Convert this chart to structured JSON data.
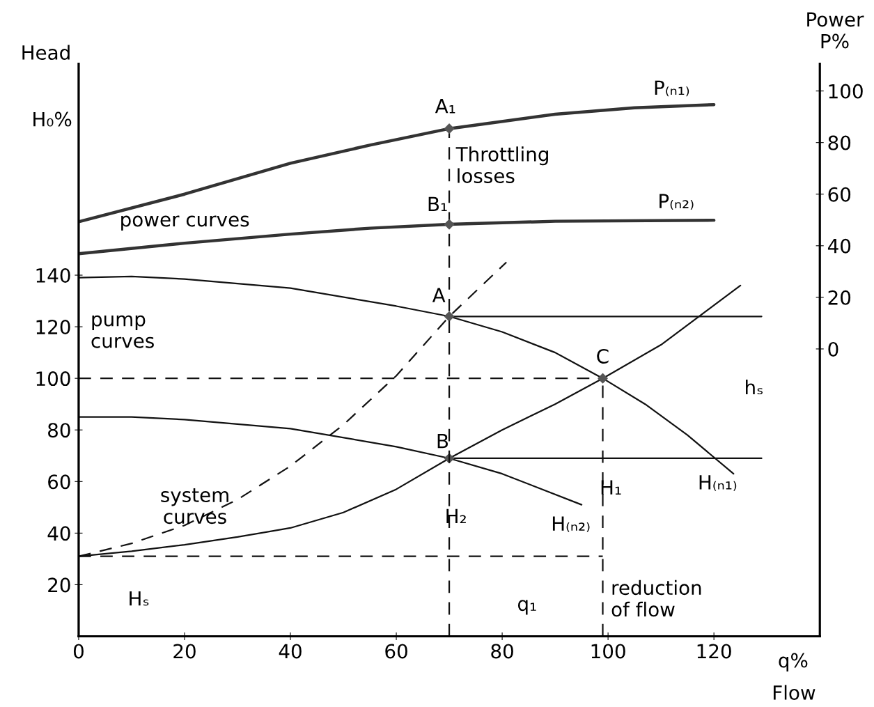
{
  "chart_data": {
    "type": "line",
    "xlabel": "Flow",
    "ylabel": "Head",
    "y2label": "Power\nP%",
    "xlim": [
      0,
      140
    ],
    "xticks": [
      0,
      20,
      40,
      60,
      80,
      100,
      120
    ],
    "ylim": [
      0,
      222
    ],
    "yticks": [
      20,
      40,
      60,
      80,
      100,
      120,
      140
    ],
    "y2lim": [
      -111.4,
      110.6
    ],
    "y2ticks": [
      0,
      20,
      40,
      60,
      80,
      100
    ],
    "grid": false,
    "series": [
      {
        "axis": "y2",
        "color": "#333333",
        "line_style": "solid",
        "x": [
          0,
          20,
          40,
          55,
          70,
          90,
          105,
          120
        ],
        "values": [
          49.3,
          60,
          72,
          79,
          85.4,
          91,
          93.5,
          94.7
        ]
      },
      {
        "axis": "y2",
        "color": "#333333",
        "line_style": "solid",
        "x": [
          0,
          20,
          40,
          55,
          70,
          90,
          120
        ],
        "values": [
          36.9,
          41,
          44.5,
          46.8,
          48.3,
          49.5,
          49.9
        ]
      },
      {
        "color": "#111111",
        "line_style": "solid",
        "x": [
          0,
          10,
          20,
          40,
          60,
          70,
          80,
          90,
          99,
          107,
          115,
          123.7
        ],
        "values": [
          139,
          139.5,
          138.5,
          135,
          128,
          124,
          118,
          110,
          100,
          90,
          78,
          63
        ]
      },
      {
        "color": "#111111",
        "line_style": "solid",
        "x": [
          0,
          10,
          20,
          40,
          60,
          70,
          80,
          95
        ],
        "values": [
          85,
          85,
          84,
          80.5,
          73.5,
          69,
          63,
          51
        ]
      },
      {
        "color": "#111111",
        "line_style": "solid",
        "x": [
          0,
          10,
          20,
          30,
          40,
          50,
          60,
          70,
          80,
          90,
          99,
          110,
          125
        ],
        "values": [
          31,
          33,
          35.5,
          38.5,
          42,
          48,
          57,
          69,
          80,
          90,
          100,
          113,
          136
        ]
      },
      {
        "color": "#111111",
        "line_style": "dashed",
        "x": [
          0,
          10,
          20,
          30,
          40,
          50,
          60,
          70,
          80.8
        ],
        "values": [
          31,
          36,
          43,
          53,
          66,
          82,
          101,
          124,
          145
        ]
      },
      {
        "color": "#111111",
        "line_style": "dashed",
        "x": [
          0,
          99
        ],
        "values": [
          100,
          100
        ]
      },
      {
        "color": "#111111",
        "line_style": "dashed",
        "x": [
          0,
          99
        ],
        "values": [
          31,
          31
        ]
      },
      {
        "color": "#111111",
        "line_style": "dashed",
        "x": [
          99,
          99
        ],
        "values": [
          0,
          100
        ]
      },
      {
        "axis": "y2",
        "color": "#111111",
        "line_style": "dashed",
        "x": [
          70,
          70
        ],
        "values": [
          -111.4,
          85.4
        ]
      },
      {
        "color": "#111111",
        "line_style": "solid",
        "x": [
          70,
          129
        ],
        "values": [
          124,
          124
        ]
      },
      {
        "color": "#111111",
        "line_style": "solid",
        "x": [
          70,
          129
        ],
        "values": [
          69,
          69
        ]
      },
      {
        "type": "scatter",
        "color": "#555555",
        "marker": "diamond",
        "x": [
          70,
          70,
          99
        ],
        "values": [
          124,
          69,
          100
        ]
      },
      {
        "type": "scatter",
        "axis": "y2",
        "color": "#555555",
        "marker": "diamond",
        "x": [
          70,
          70
        ],
        "values": [
          85.4,
          48.3
        ]
      }
    ],
    "annotations": [
      "A₁",
      "B₁",
      "A",
      "B",
      "C",
      "Throttling\nlosses",
      "power curves",
      "pump\ncurves",
      "system\ncurves",
      "P₍ₙ₁₎",
      "P₍ₙ₂₎",
      "H₍ₙ₁₎",
      "H₍ₙ₂₎",
      "hₛ",
      "H₁",
      "H₂",
      "Hₛ",
      "q₁",
      "reduction\nof flow",
      "H₀%",
      "q%"
    ]
  }
}
